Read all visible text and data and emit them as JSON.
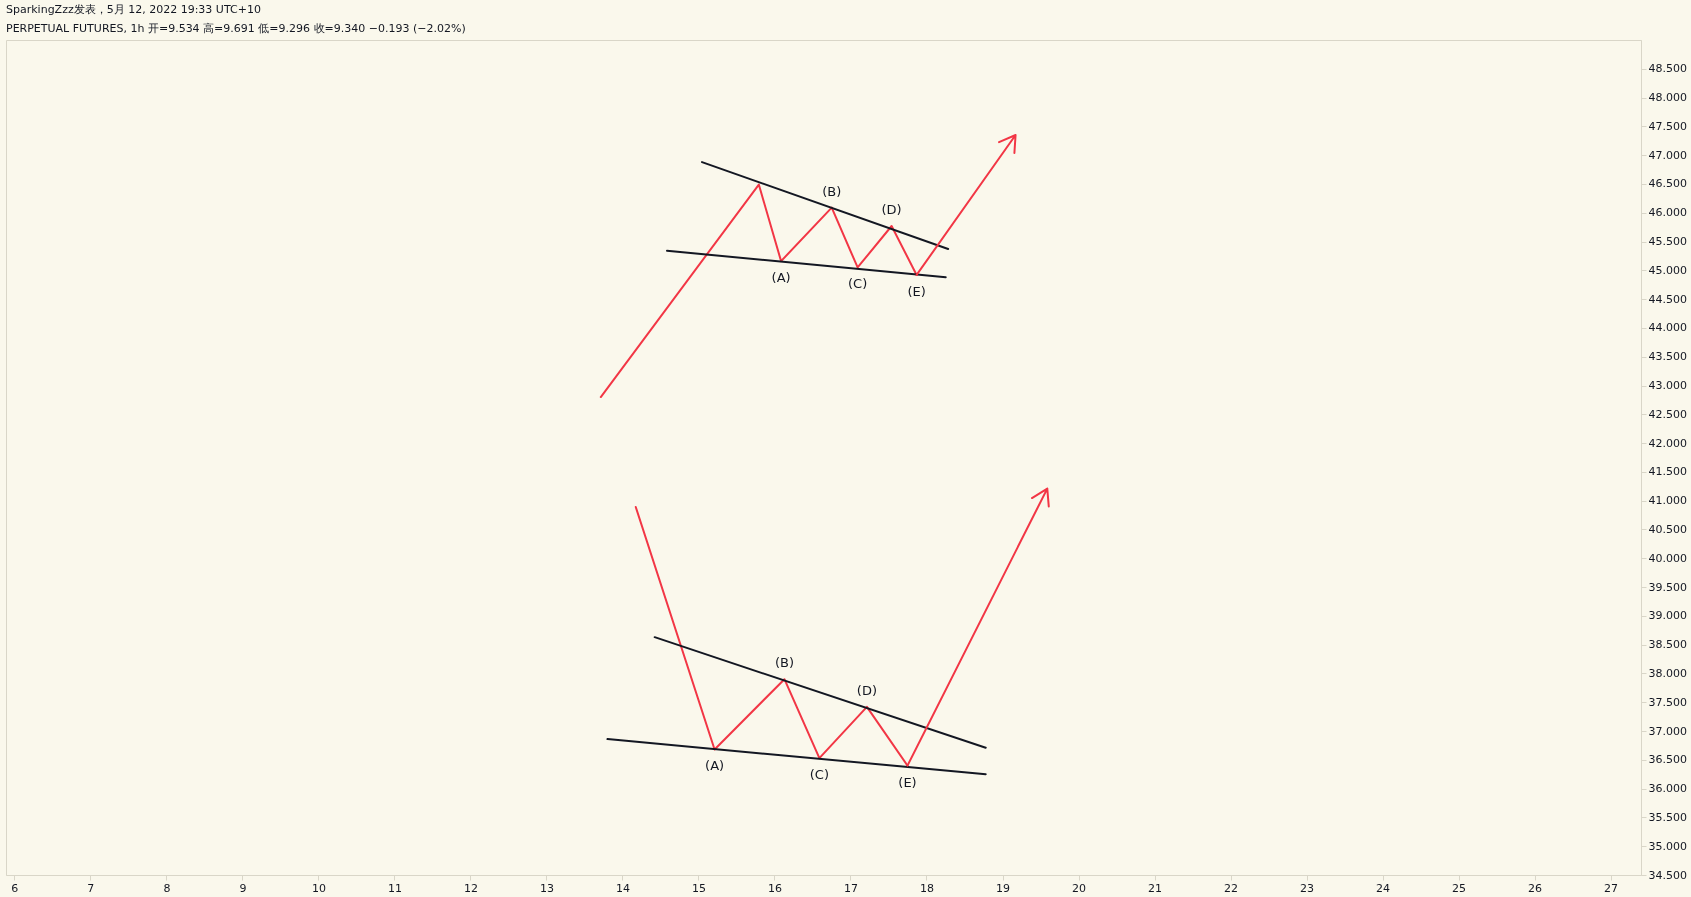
{
  "chart_data": {
    "type": "line",
    "title": "SparkingZzz发表，5月 12, 2022 19:33 UTC+10",
    "subtitle": "PERPETUAL FUTURES, 1h 开=9.534 高=9.691 低=9.296 收=9.340 −0.193 (−2.02%)",
    "series": [
      {
        "color": "#f23645",
        "x": [
          13.715,
          15.794,
          16.087,
          16.753,
          17.094,
          17.541,
          17.87,
          19.172
        ],
        "values": [
          42.8,
          46.49,
          45.16,
          46.09,
          45.05,
          45.77,
          44.92,
          47.35
        ]
      },
      {
        "color": "#131722",
        "x": [
          15.047,
          18.285
        ],
        "values": [
          46.88,
          45.37
        ]
      },
      {
        "color": "#131722",
        "x": [
          14.586,
          18.253
        ],
        "values": [
          45.34,
          44.88
        ]
      },
      {
        "color": "#f23645",
        "x": [
          14.175,
          15.212,
          16.131,
          16.591,
          17.216,
          17.75,
          19.589
        ],
        "values": [
          40.89,
          36.68,
          37.9,
          36.53,
          37.42,
          36.4,
          41.21
        ]
      },
      {
        "color": "#131722",
        "x": [
          14.424,
          18.779
        ],
        "values": [
          38.63,
          36.71
        ]
      },
      {
        "color": "#131722",
        "x": [
          13.803,
          18.779
        ],
        "values": [
          36.86,
          36.25
        ]
      }
    ],
    "annotations": [
      {
        "text": "(A)",
        "x": 16.087,
        "y": 45.16
      },
      {
        "text": "(B)",
        "x": 16.753,
        "y": 46.09
      },
      {
        "text": "(C)",
        "x": 17.094,
        "y": 45.05
      },
      {
        "text": "(D)",
        "x": 17.541,
        "y": 45.77
      },
      {
        "text": "(E)",
        "x": 17.87,
        "y": 44.92
      },
      {
        "text": "(A)",
        "x": 15.212,
        "y": 36.68
      },
      {
        "text": "(B)",
        "x": 16.131,
        "y": 37.9
      },
      {
        "text": "(C)",
        "x": 16.591,
        "y": 36.53
      },
      {
        "text": "(D)",
        "x": 17.216,
        "y": 37.42
      },
      {
        "text": "(E)",
        "x": 17.75,
        "y": 36.4
      }
    ],
    "xlim": [
      5.89,
      27.4
    ],
    "xticks": [
      6,
      7,
      8,
      9,
      10,
      11,
      12,
      13,
      14,
      15,
      16,
      17,
      18,
      19,
      20,
      21,
      22,
      23,
      24,
      25,
      26,
      27
    ],
    "ylim": [
      34.5,
      49
    ],
    "yticks": [
      {
        "value": 34.5,
        "label": "34.500"
      },
      {
        "value": 35,
        "label": "35.000"
      },
      {
        "value": 35.5,
        "label": "35.500"
      },
      {
        "value": 36,
        "label": "36.000"
      },
      {
        "value": 36.5,
        "label": "36.500"
      },
      {
        "value": 37,
        "label": "37.000"
      },
      {
        "value": 37.5,
        "label": "37.500"
      },
      {
        "value": 38,
        "label": "38.000"
      },
      {
        "value": 38.5,
        "label": "38.500"
      },
      {
        "value": 39,
        "label": "39.000"
      },
      {
        "value": 39.5,
        "label": "39.500"
      },
      {
        "value": 40,
        "label": "40.000"
      },
      {
        "value": 40.5,
        "label": "40.500"
      },
      {
        "value": 41,
        "label": "41.000"
      },
      {
        "value": 41.5,
        "label": "41.500"
      },
      {
        "value": 42,
        "label": "42.000"
      },
      {
        "value": 42.5,
        "label": "42.500"
      },
      {
        "value": 43,
        "label": "43.000"
      },
      {
        "value": 43.5,
        "label": "43.500"
      },
      {
        "value": 44,
        "label": "44.000"
      },
      {
        "value": 44.5,
        "label": "44.500"
      },
      {
        "value": 45,
        "label": "45.000"
      },
      {
        "value": 45.5,
        "label": "45.500"
      },
      {
        "value": 46,
        "label": "46.000"
      },
      {
        "value": 46.5,
        "label": "46.500"
      },
      {
        "value": 47,
        "label": "47.000"
      },
      {
        "value": 47.5,
        "label": "47.500"
      },
      {
        "value": 48,
        "label": "48.000"
      },
      {
        "value": 48.5,
        "label": "48.500"
      }
    ],
    "grid": false,
    "marker": "none",
    "line_style": "solid"
  }
}
